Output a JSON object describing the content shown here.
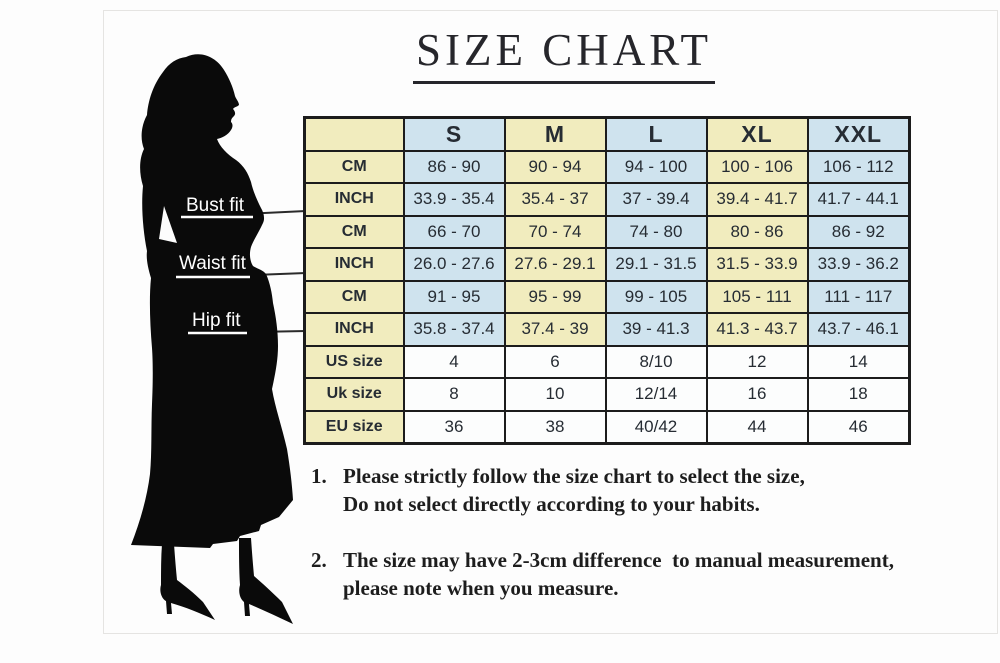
{
  "title": {
    "text": "SIZE CHART"
  },
  "figure": {
    "labels": [
      {
        "text": "Bust fit"
      },
      {
        "text": "Waist fit"
      },
      {
        "text": "Hip fit"
      }
    ],
    "silhouette_color": "#0a0a0a"
  },
  "size_table": {
    "columns": [
      "",
      "S",
      "M",
      "L",
      "XL",
      "XXL"
    ],
    "col_colors": [
      "#f1ecbe",
      "#cfe3ee",
      "#f1ecbe",
      "#cfe3ee",
      "#f1ecbe",
      "#cfe3ee"
    ],
    "plain_value_bg": "#fcfdfd",
    "plain_rows_from": 6,
    "border_color": "#1c1c1c",
    "rows": [
      {
        "label": "CM",
        "values": [
          "86 - 90",
          "90 - 94",
          "94 - 100",
          "100 - 106",
          "106 - 112"
        ]
      },
      {
        "label": "INCH",
        "values": [
          "33.9 - 35.4",
          "35.4 - 37",
          "37 - 39.4",
          "39.4 - 41.7",
          "41.7 - 44.1"
        ]
      },
      {
        "label": "CM",
        "values": [
          "66 - 70",
          "70 - 74",
          "74 - 80",
          "80 - 86",
          "86 - 92"
        ]
      },
      {
        "label": "INCH",
        "values": [
          "26.0 - 27.6",
          "27.6 - 29.1",
          "29.1 - 31.5",
          "31.5 - 33.9",
          "33.9 - 36.2"
        ]
      },
      {
        "label": "CM",
        "values": [
          "91 - 95",
          "95 - 99",
          "99 - 105",
          "105 - 111",
          "111 - 117"
        ]
      },
      {
        "label": "INCH",
        "values": [
          "35.8 - 37.4",
          "37.4 - 39",
          "39 - 41.3",
          "41.3 - 43.7",
          "43.7 - 46.1"
        ]
      },
      {
        "label": "US size",
        "values": [
          "4",
          "6",
          "8/10",
          "12",
          "14"
        ]
      },
      {
        "label": "Uk size",
        "values": [
          "8",
          "10",
          "12/14",
          "16",
          "18"
        ]
      },
      {
        "label": "EU size",
        "values": [
          "36",
          "38",
          "40/42",
          "44",
          "46"
        ]
      }
    ]
  },
  "notes": [
    {
      "num": "1.",
      "lines": [
        "Please strictly follow the size chart to select the size,",
        "Do not select directly according to your habits."
      ]
    },
    {
      "num": "2.",
      "lines": [
        "The size may have 2-3cm difference  to manual measurement,",
        "please note when you measure."
      ]
    }
  ]
}
